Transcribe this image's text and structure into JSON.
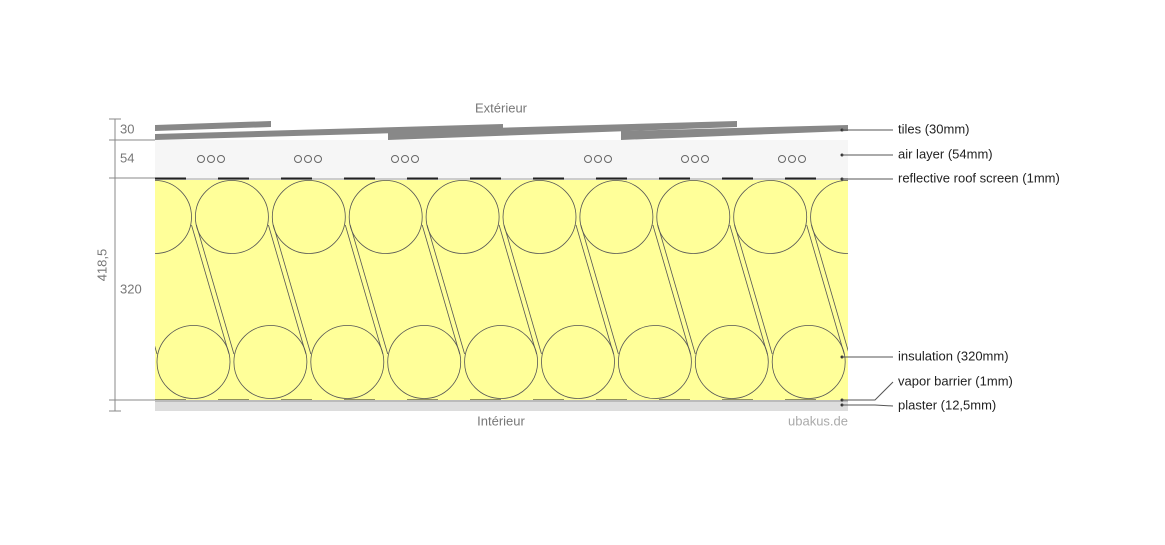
{
  "header": {
    "exterior": "Extérieur",
    "interior": "Intérieur",
    "watermark": "ubakus.de"
  },
  "dimensions": {
    "total": "418,5",
    "segments": [
      "30",
      "54",
      "320"
    ]
  },
  "layers": [
    {
      "label": "tiles (30mm)"
    },
    {
      "label": "air layer (54mm)"
    },
    {
      "label": "reflective roof screen (1mm)"
    },
    {
      "label": "insulation (320mm)"
    },
    {
      "label": "vapor barrier (1mm)"
    },
    {
      "label": "plaster (12,5mm)"
    }
  ]
}
